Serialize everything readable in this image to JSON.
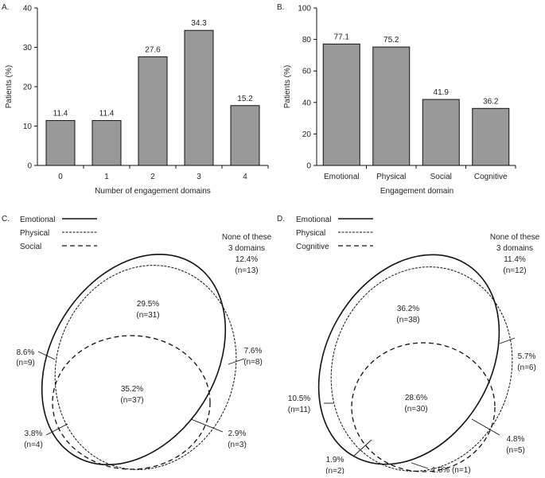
{
  "chart_data": [
    {
      "panel": "A.",
      "type": "bar",
      "categories": [
        "0",
        "1",
        "2",
        "3",
        "4"
      ],
      "values": [
        11.4,
        11.4,
        27.6,
        34.3,
        15.2
      ],
      "data_labels": [
        "11.4",
        "11.4",
        "27.6",
        "34.3",
        "15.2"
      ],
      "xlabel": "Number of engagement domains",
      "ylabel": "Patients (%)",
      "ylim": [
        0,
        40
      ],
      "yticks": [
        "0",
        "10",
        "20",
        "30",
        "40"
      ],
      "bar_color": "#999999"
    },
    {
      "panel": "B.",
      "type": "bar",
      "categories": [
        "Emotional",
        "Physical",
        "Social",
        "Cognitive"
      ],
      "values": [
        77.1,
        75.2,
        41.9,
        36.2
      ],
      "data_labels": [
        "77.1",
        "75.2",
        "41.9",
        "36.2"
      ],
      "xlabel": "Engagement domain",
      "ylabel": "Patients (%)",
      "ylim": [
        0,
        100
      ],
      "yticks": [
        "0",
        "20",
        "40",
        "60",
        "80",
        "100"
      ],
      "bar_color": "#999999"
    },
    {
      "panel": "C.",
      "type": "venn",
      "legend": [
        {
          "name": "Emotional",
          "line": "solid"
        },
        {
          "name": "Physical",
          "line": "dotted"
        },
        {
          "name": "Social",
          "line": "dashed"
        }
      ],
      "none_label": [
        "None of these",
        "3 domains",
        "12.4%",
        "(n=13)"
      ],
      "regions": [
        {
          "pct": "29.5%",
          "n": "(n=31)"
        },
        {
          "pct": "8.6%",
          "n": "(n=9)"
        },
        {
          "pct": "7.6%",
          "n": "(n=8)"
        },
        {
          "pct": "35.2%",
          "n": "(n=37)"
        },
        {
          "pct": "3.8%",
          "n": "(n=4)"
        },
        {
          "pct": "2.9%",
          "n": "(n=3)"
        }
      ]
    },
    {
      "panel": "D.",
      "type": "venn",
      "legend": [
        {
          "name": "Emotional",
          "line": "solid"
        },
        {
          "name": "Physical",
          "line": "dotted"
        },
        {
          "name": "Cognitive",
          "line": "dashed"
        }
      ],
      "none_label": [
        "None of these",
        "3 domains",
        "11.4%",
        "(n=12)"
      ],
      "regions": [
        {
          "pct": "36.2%",
          "n": "(n=38)"
        },
        {
          "pct": "5.7%",
          "n": "(n=6)"
        },
        {
          "pct": "28.6%",
          "n": "(n=30)"
        },
        {
          "pct": "10.5%",
          "n": "(n=11)"
        },
        {
          "pct": "4.8%",
          "n": "(n=5)"
        },
        {
          "pct": "1.9%",
          "n": "(n=2)"
        },
        {
          "pct": "1.0% (n=1)",
          "n": ""
        }
      ]
    }
  ]
}
